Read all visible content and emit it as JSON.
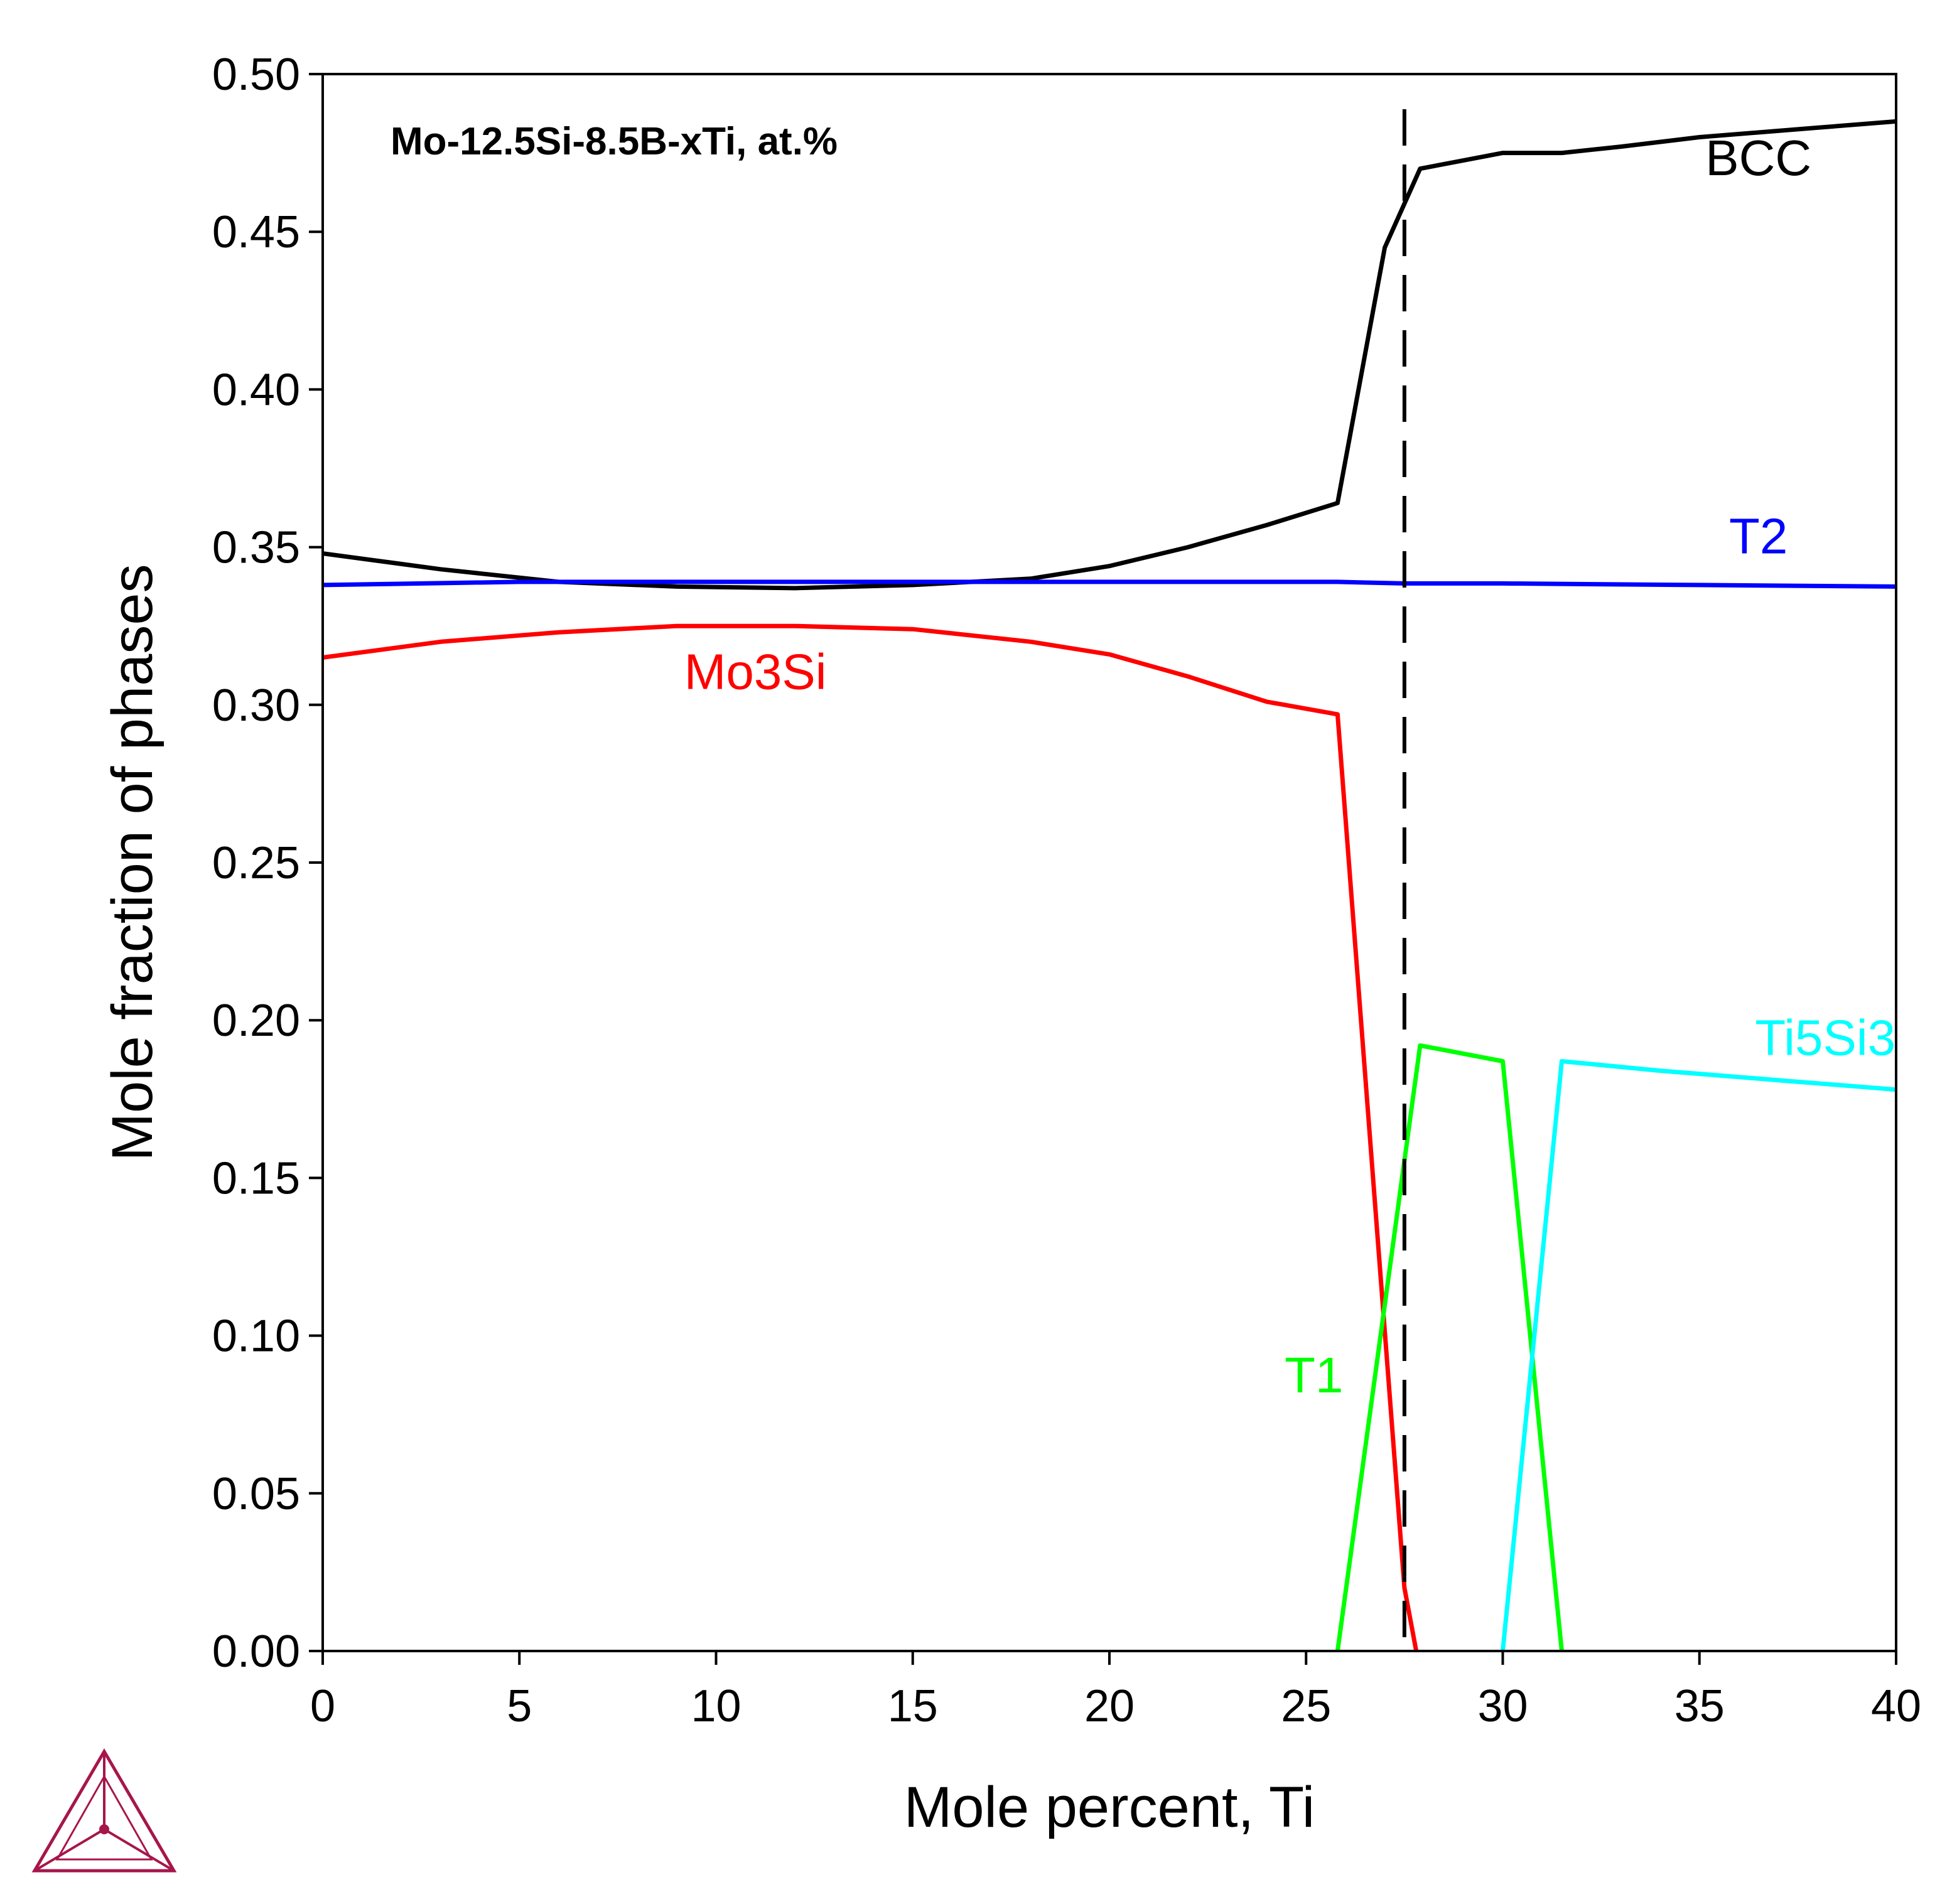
{
  "chart_data": {
    "type": "line",
    "title": "Mo-12.5Si-8.5B-xTi, at.%",
    "xlabel": "Mole percent, Ti",
    "ylabel": "Mole fraction of phases",
    "xlim": [
      0,
      40
    ],
    "ylim": [
      0,
      0.5
    ],
    "x_ticks": [
      0,
      5,
      10,
      15,
      20,
      25,
      30,
      35,
      40
    ],
    "y_ticks": [
      0.0,
      0.05,
      0.1,
      0.15,
      0.2,
      0.25,
      0.3,
      0.35,
      0.4,
      0.45,
      0.5
    ],
    "x_tick_labels": [
      "0",
      "5",
      "10",
      "15",
      "20",
      "25",
      "30",
      "35",
      "40"
    ],
    "y_tick_labels": [
      "0.00",
      "0.05",
      "0.10",
      "0.15",
      "0.20",
      "0.25",
      "0.30",
      "0.35",
      "0.40",
      "0.45",
      "0.50"
    ],
    "reference_line": {
      "x": 27.5,
      "style": "dashed",
      "color": "#000000"
    },
    "grid": false,
    "series": [
      {
        "name": "BCC",
        "color": "#000000",
        "label_pos": [
          36.5,
          0.468
        ],
        "points": [
          [
            0,
            0.348
          ],
          [
            3,
            0.343
          ],
          [
            6,
            0.339
          ],
          [
            9,
            0.3375
          ],
          [
            12,
            0.337
          ],
          [
            15,
            0.338
          ],
          [
            18,
            0.34
          ],
          [
            20,
            0.344
          ],
          [
            22,
            0.35
          ],
          [
            24,
            0.357
          ],
          [
            25.8,
            0.364
          ],
          [
            27.0,
            0.445
          ],
          [
            27.9,
            0.47
          ],
          [
            30,
            0.475
          ],
          [
            31.5,
            0.475
          ],
          [
            33,
            0.477
          ],
          [
            35,
            0.48
          ],
          [
            38,
            0.483
          ],
          [
            40,
            0.485
          ]
        ]
      },
      {
        "name": "T2",
        "color": "#0000ff",
        "label_pos": [
          36.5,
          0.348
        ],
        "points": [
          [
            0,
            0.338
          ],
          [
            5,
            0.339
          ],
          [
            10,
            0.339
          ],
          [
            15,
            0.339
          ],
          [
            20,
            0.339
          ],
          [
            25.8,
            0.339
          ],
          [
            27.5,
            0.3385
          ],
          [
            30,
            0.3385
          ],
          [
            35,
            0.338
          ],
          [
            40,
            0.3375
          ]
        ]
      },
      {
        "name": "Mo3Si",
        "color": "#ff0000",
        "label_pos": [
          11.0,
          0.305
        ],
        "points": [
          [
            0,
            0.315
          ],
          [
            3,
            0.32
          ],
          [
            6,
            0.323
          ],
          [
            9,
            0.325
          ],
          [
            12,
            0.325
          ],
          [
            15,
            0.324
          ],
          [
            18,
            0.32
          ],
          [
            20,
            0.316
          ],
          [
            22,
            0.309
          ],
          [
            24,
            0.301
          ],
          [
            25.8,
            0.297
          ],
          [
            27.5,
            0.02
          ],
          [
            27.8,
            0.0
          ]
        ]
      },
      {
        "name": "T1",
        "color": "#00ff00",
        "label_pos": [
          25.2,
          0.082
        ],
        "points": [
          [
            25.8,
            0.0
          ],
          [
            27.9,
            0.192
          ],
          [
            30,
            0.187
          ],
          [
            31.5,
            0.0
          ]
        ]
      },
      {
        "name": "Ti5Si3",
        "color": "#00ffff",
        "label_pos": [
          38.2,
          0.189
        ],
        "points": [
          [
            30,
            0.0
          ],
          [
            31.5,
            0.187
          ],
          [
            34,
            0.184
          ],
          [
            37,
            0.181
          ],
          [
            40,
            0.178
          ]
        ]
      }
    ]
  },
  "logo": {
    "name": "thermo-calc-logo",
    "color": "#a6164a"
  }
}
